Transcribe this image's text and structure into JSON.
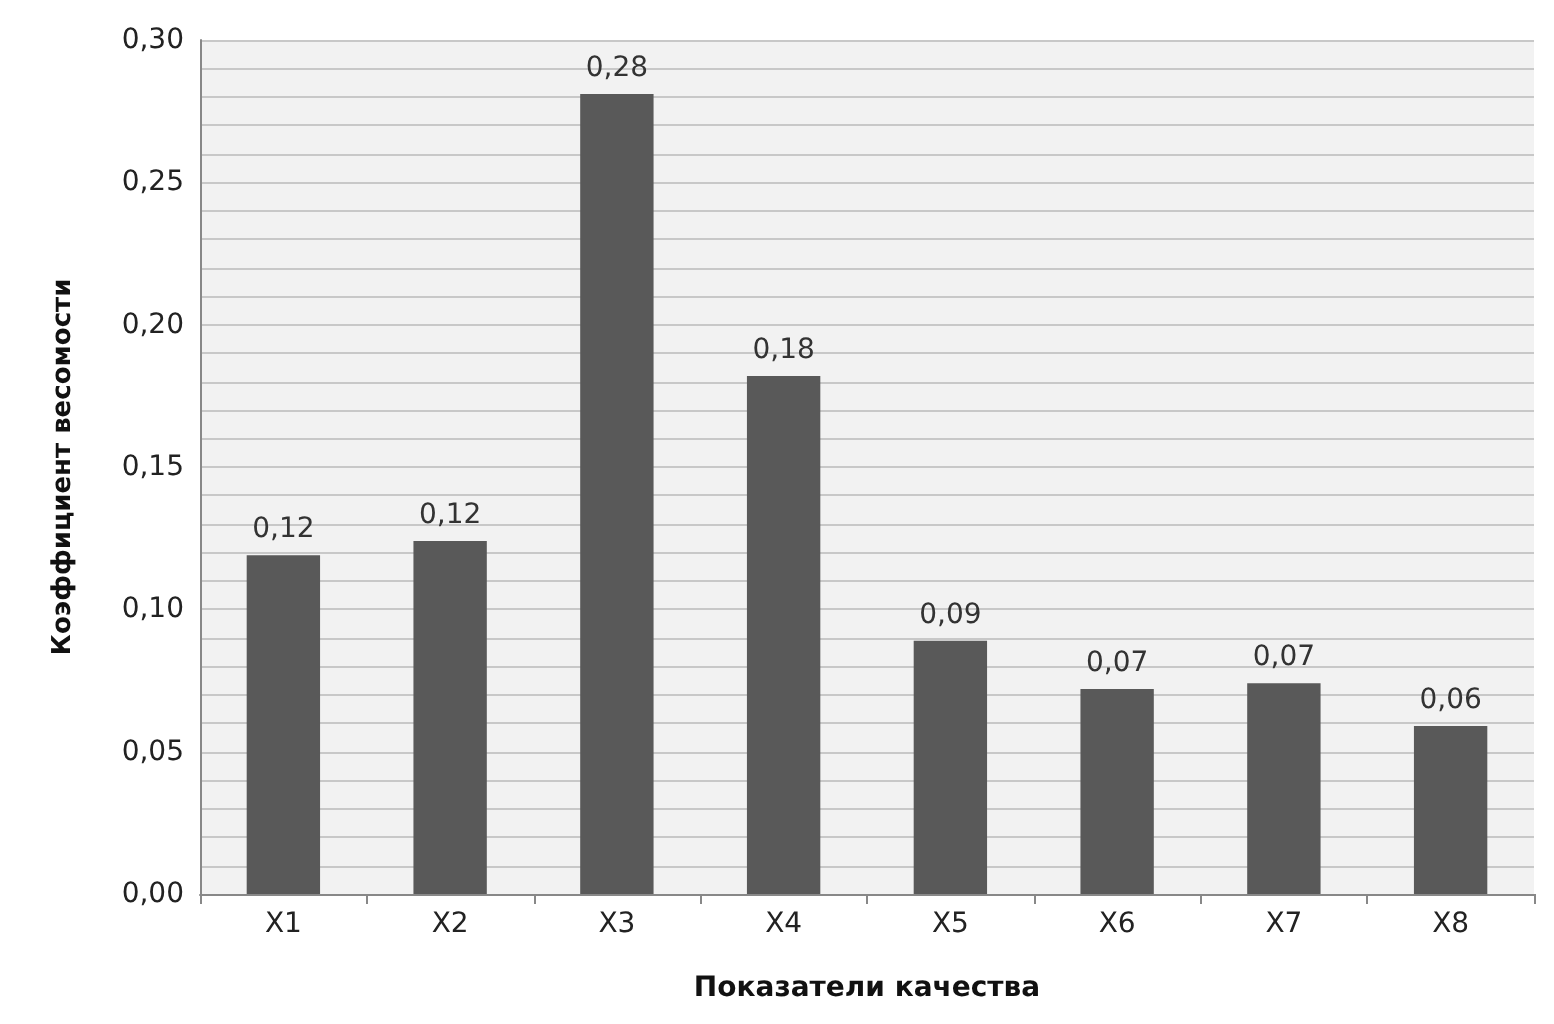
{
  "chart_data": {
    "type": "bar",
    "xlabel": "Показатели качества",
    "ylabel": "Коэффициент весомости",
    "categories": [
      "X1",
      "X2",
      "X3",
      "X4",
      "X5",
      "X6",
      "X7",
      "X8"
    ],
    "values": [
      0.119,
      0.124,
      0.281,
      0.182,
      0.089,
      0.072,
      0.074,
      0.059
    ],
    "color": "#595959",
    "value_labels": [
      "0,12",
      "0,12",
      "0,28",
      "0,18",
      "0,09",
      "0,07",
      "0,07",
      "0,06"
    ],
    "grid": "y",
    "ylim": [
      0,
      0.3
    ],
    "yticks": [
      {
        "value": 0,
        "label": "0,00"
      },
      {
        "value": 0.01,
        "label": null
      },
      {
        "value": 0.02,
        "label": null
      },
      {
        "value": 0.03,
        "label": null
      },
      {
        "value": 0.04,
        "label": null
      },
      {
        "value": 0.05,
        "label": "0,05"
      },
      {
        "value": 0.06,
        "label": null
      },
      {
        "value": 0.07,
        "label": null
      },
      {
        "value": 0.08,
        "label": null
      },
      {
        "value": 0.09,
        "label": null
      },
      {
        "value": 0.1,
        "label": "0,10"
      },
      {
        "value": 0.11,
        "label": null
      },
      {
        "value": 0.12,
        "label": null
      },
      {
        "value": 0.13,
        "label": null
      },
      {
        "value": 0.14,
        "label": null
      },
      {
        "value": 0.15,
        "label": "0,15"
      },
      {
        "value": 0.16,
        "label": null
      },
      {
        "value": 0.17,
        "label": null
      },
      {
        "value": 0.18,
        "label": null
      },
      {
        "value": 0.19,
        "label": null
      },
      {
        "value": 0.2,
        "label": "0,20"
      },
      {
        "value": 0.21,
        "label": null
      },
      {
        "value": 0.22,
        "label": null
      },
      {
        "value": 0.23,
        "label": null
      },
      {
        "value": 0.24,
        "label": null
      },
      {
        "value": 0.25,
        "label": "0,25"
      },
      {
        "value": 0.26,
        "label": null
      },
      {
        "value": 0.27,
        "label": null
      },
      {
        "value": 0.28,
        "label": null
      },
      {
        "value": 0.29,
        "label": null
      },
      {
        "value": 0.3,
        "label": "0,30"
      }
    ]
  }
}
